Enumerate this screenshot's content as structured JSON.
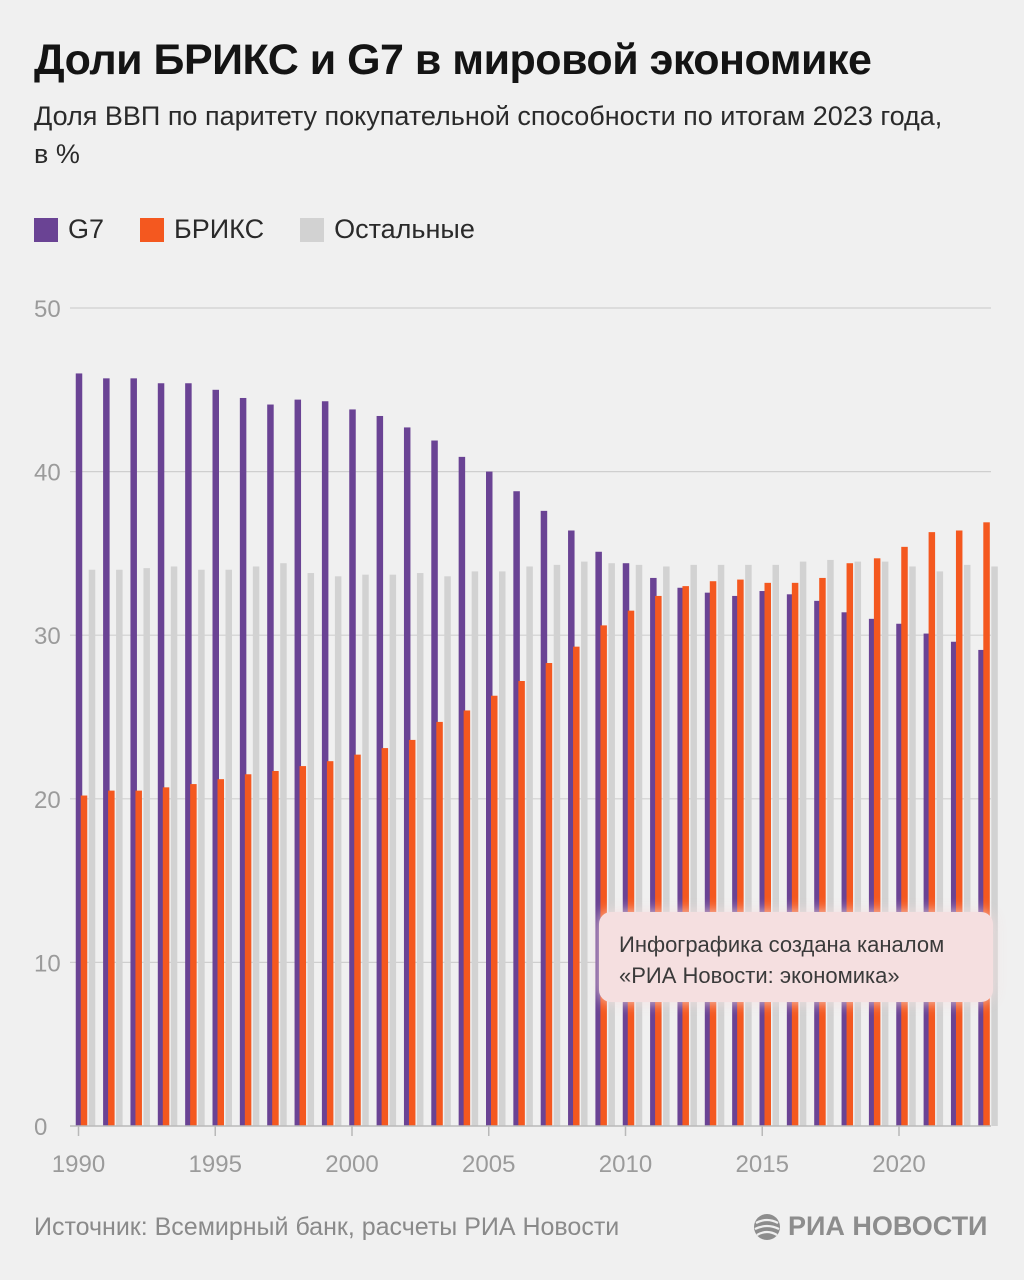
{
  "header": {
    "title": "Доли БРИКС и G7 в мировой экономике",
    "subtitle": "Доля ВВП по паритету покупательной способности по итогам 2023 года, в %"
  },
  "legend": [
    {
      "label": "G7",
      "color": "#6a4394"
    },
    {
      "label": "БРИКС",
      "color": "#f4581f"
    },
    {
      "label": "Остальные",
      "color": "#d2d2d2"
    }
  ],
  "chart_data": {
    "type": "bar",
    "x": [
      1990,
      1991,
      1992,
      1993,
      1994,
      1995,
      1996,
      1997,
      1998,
      1999,
      2000,
      2001,
      2002,
      2003,
      2004,
      2005,
      2006,
      2007,
      2008,
      2009,
      2010,
      2011,
      2012,
      2013,
      2014,
      2015,
      2016,
      2017,
      2018,
      2019,
      2020,
      2021,
      2022,
      2023
    ],
    "series": [
      {
        "name": "G7",
        "color": "#6a4394",
        "values": [
          46.0,
          45.7,
          45.7,
          45.4,
          45.4,
          45.0,
          44.5,
          44.1,
          44.4,
          44.3,
          43.8,
          43.4,
          42.7,
          41.9,
          40.9,
          40.0,
          38.8,
          37.6,
          36.4,
          35.1,
          34.4,
          33.5,
          32.9,
          32.6,
          32.4,
          32.7,
          32.5,
          32.1,
          31.4,
          31.0,
          30.7,
          30.1,
          29.6,
          29.1
        ]
      },
      {
        "name": "БРИКС",
        "color": "#f4581f",
        "values": [
          20.2,
          20.5,
          20.5,
          20.7,
          20.9,
          21.2,
          21.5,
          21.7,
          22.0,
          22.3,
          22.7,
          23.1,
          23.6,
          24.7,
          25.4,
          26.3,
          27.2,
          28.3,
          29.3,
          30.6,
          31.5,
          32.4,
          33.0,
          33.3,
          33.4,
          33.2,
          33.2,
          33.5,
          34.4,
          34.7,
          35.4,
          36.3,
          36.4,
          36.9
        ]
      },
      {
        "name": "Остальные",
        "color": "#d2d2d2",
        "values": [
          34.0,
          34.0,
          34.1,
          34.2,
          34.0,
          34.0,
          34.2,
          34.4,
          33.8,
          33.6,
          33.7,
          33.7,
          33.8,
          33.6,
          33.9,
          33.9,
          34.2,
          34.3,
          34.5,
          34.4,
          34.3,
          34.2,
          34.3,
          34.3,
          34.3,
          34.3,
          34.5,
          34.6,
          34.5,
          34.5,
          34.2,
          33.9,
          34.3,
          34.2
        ]
      }
    ],
    "xticks": [
      "1990",
      "1995",
      "2000",
      "2005",
      "2010",
      "2015",
      "2020"
    ],
    "yticks": [
      "0",
      "10",
      "20",
      "30",
      "40",
      "50"
    ],
    "ylim": [
      0,
      50
    ],
    "grid": true,
    "legend_position": "top-left"
  },
  "notice": {
    "line1": "Инфографика создана каналом",
    "line2": "«РИА Новости: экономика»"
  },
  "footer": {
    "source": "Источник: Всемирный банк, расчеты РИА Новости",
    "brand": "РИА НОВОСТИ"
  }
}
